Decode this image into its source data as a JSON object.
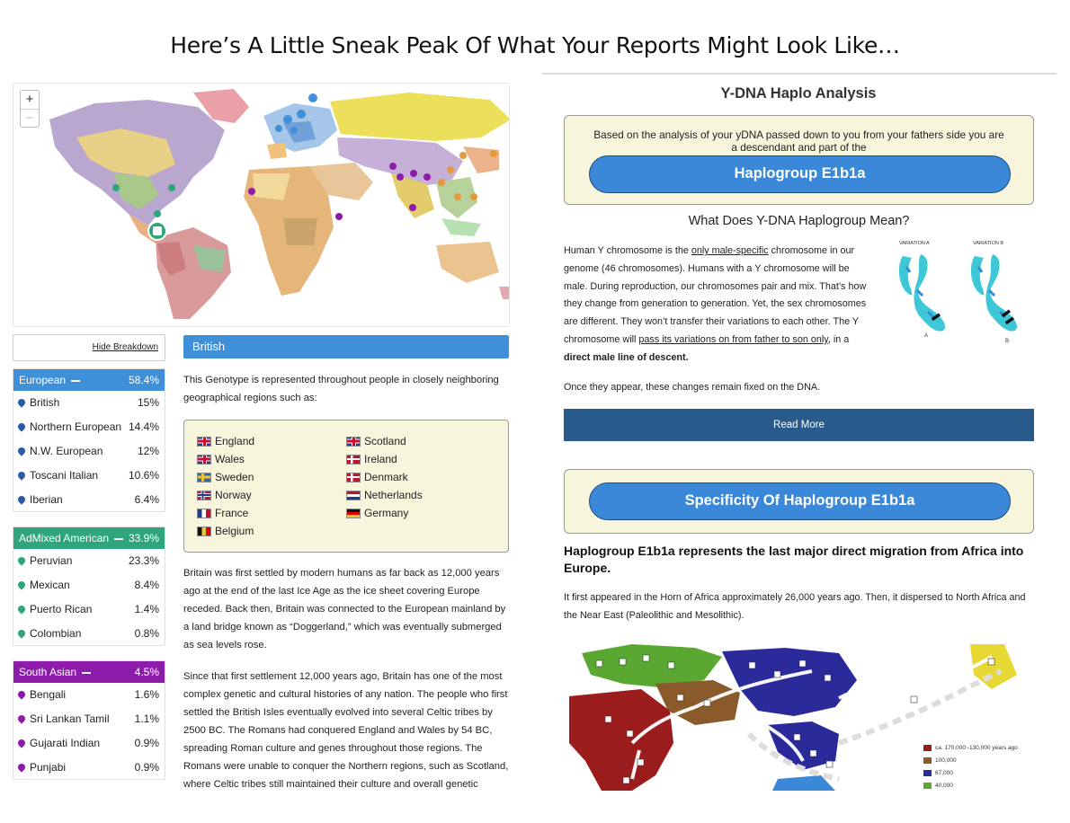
{
  "headline": "Here’s A Little Sneak Peak Of What Your Reports Might Look Like…",
  "map": {
    "zoom_in": "+",
    "zoom_out": "−"
  },
  "breakdown": {
    "hide_label": "Hide Breakdown",
    "groups": [
      {
        "name": "European",
        "percent": "58.4%",
        "color": "#3f8fd9",
        "items": [
          {
            "name": "British",
            "percent": "15%"
          },
          {
            "name": "Northern European",
            "percent": "14.4%"
          },
          {
            "name": "N.W. European",
            "percent": "12%"
          },
          {
            "name": "Toscani Italian",
            "percent": "10.6%"
          },
          {
            "name": "Iberian",
            "percent": "6.4%"
          }
        ]
      },
      {
        "name": "AdMixed American",
        "percent": "33.9%",
        "color": "#2ea57a",
        "items": [
          {
            "name": "Peruvian",
            "percent": "23.3%"
          },
          {
            "name": "Mexican",
            "percent": "8.4%"
          },
          {
            "name": "Puerto Rican",
            "percent": "1.4%"
          },
          {
            "name": "Colombian",
            "percent": "0.8%"
          }
        ]
      },
      {
        "name": "South Asian",
        "percent": "4.5%",
        "color": "#8e1cab",
        "items": [
          {
            "name": "Bengali",
            "percent": "1.6%"
          },
          {
            "name": "Sri Lankan Tamil",
            "percent": "1.1%"
          },
          {
            "name": "Gujarati Indian",
            "percent": "0.9%"
          },
          {
            "name": "Punjabi",
            "percent": "0.9%"
          }
        ]
      }
    ]
  },
  "detail": {
    "title": "British",
    "intro": "This Genotype is represented throughout people in closely neighboring geographical regions such as:",
    "regions": [
      {
        "name": "England",
        "flag": "uk"
      },
      {
        "name": "Scotland",
        "flag": "uk"
      },
      {
        "name": "Wales",
        "flag": "uk"
      },
      {
        "name": "Ireland",
        "flag": "dk"
      },
      {
        "name": "Sweden",
        "flag": "se"
      },
      {
        "name": "Denmark",
        "flag": "dk"
      },
      {
        "name": "Norway",
        "flag": "no"
      },
      {
        "name": "Netherlands",
        "flag": "nl"
      },
      {
        "name": "France",
        "flag": "fr"
      },
      {
        "name": "Germany",
        "flag": "de"
      },
      {
        "name": "Belgium",
        "flag": "be"
      }
    ],
    "para1": "Britain was first settled by modern humans as far back as 12,000 years ago at the end of the last Ice Age as the ice sheet covering Europe receded. Back then, Britain was connected to the European mainland by a land bridge known as “Doggerland,” which was eventually submerged as sea levels rose.",
    "para2": "Since that first settlement 12,000 years ago, Britain has one of the most complex genetic and cultural histories of any nation. The people who first settled the British Isles eventually evolved into several Celtic tribes by 2500 BC. The Romans had conquered England and Wales by 54 BC, spreading Roman culture and genes throughout those regions. The Romans were unable to conquer the Northern regions, such as Scotland, where Celtic tribes still maintained their culture and overall genetic"
  },
  "ydna": {
    "title": "Y-DNA Haplo Analysis",
    "box_text": "Based on the analysis of your yDNA passed down to you from your fathers side you are a descendant and part of the",
    "haplogroup_button": "Haplogroup E1b1a",
    "what_title": "What Does Y-DNA Haplogroup Mean?",
    "text_parts": [
      "Human Y chromosome is the ",
      "only male-specific",
      " chromosome in our genome (46 chromosomes). Humans with a Y chromosome will be male. During reproduction, our chromosomes pair and mix. That’s how they change from generation to generation. Yet, the sex chromosomes are different. They won’t transfer their variations to each other. The Y chromosome will ",
      "pass its variations on from father to son only",
      ", in a ",
      "direct male line of descent."
    ],
    "once": "Once they appear, these changes remain fixed on the DNA.",
    "read_more": "Read More",
    "variation_a": "VARIATION A",
    "variation_b": "VARIATION B",
    "label_a": "A",
    "label_b": "B",
    "specificity_button": "Specificity Of Haplogroup E1b1a",
    "haplo_heading": "Haplogroup E1b1a represents the last major direct migration from Africa into Europe.",
    "appeared": "It first appeared in the Horn of Africa approximately 26,000 years ago. Then, it dispersed to North Africa and the Near East (Paleolithic and Mesolithic).",
    "legend": [
      {
        "label": "ca. 170,000 -130,000 years ago",
        "color": "#9b1c1c"
      },
      {
        "label": "100,000",
        "color": "#8a5a2a"
      },
      {
        "label": "67,000",
        "color": "#2a2a9a"
      },
      {
        "label": "40,000",
        "color": "#5aa832"
      }
    ]
  }
}
